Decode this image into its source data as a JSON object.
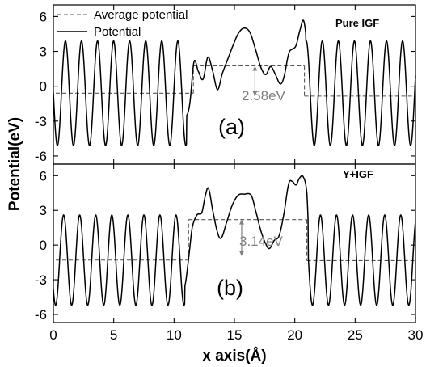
{
  "chart_data": {
    "type": "line",
    "xlabel": "x axis(Å)",
    "ylabel": "Potential(eV)",
    "xlim": [
      0,
      30
    ],
    "x_ticks": [
      "0",
      "5",
      "10",
      "15",
      "20",
      "25",
      "30"
    ],
    "legend": {
      "placement": "top-left",
      "entries": [
        {
          "label": "Average potential",
          "style": "dashed"
        },
        {
          "label": "Potential",
          "style": "solid"
        }
      ]
    },
    "panels": [
      {
        "tag": "Pure IGF",
        "label": "(a)",
        "ylim": [
          -6.7,
          7.0
        ],
        "y_ticks": [
          "6",
          "3",
          "0",
          "-3",
          "-6"
        ],
        "y_tick_values": [
          6,
          3,
          0,
          -3,
          -6
        ],
        "gap_label": "2.58eV",
        "bulk": {
          "osc_x_max": 11.05,
          "period": 1.33,
          "mean": -0.6,
          "amplitude": 4.5,
          "phase_x": 1.0
        },
        "interface_region": {
          "x_range": [
            11.05,
            20.9
          ]
        },
        "interface_points": [
          [
            11.0,
            -2.6
          ],
          [
            11.3,
            -1.5
          ],
          [
            11.65,
            2.1
          ],
          [
            12.0,
            1.3
          ],
          [
            12.4,
            0.6
          ],
          [
            12.8,
            2.5
          ],
          [
            13.2,
            1.3
          ],
          [
            13.6,
            -0.3
          ],
          [
            14.0,
            1.1
          ],
          [
            14.4,
            2.2
          ],
          [
            14.8,
            3.3
          ],
          [
            15.3,
            4.5
          ],
          [
            15.8,
            5.0
          ],
          [
            16.3,
            4.6
          ],
          [
            16.8,
            3.0
          ],
          [
            17.2,
            1.6
          ],
          [
            17.6,
            1.0
          ],
          [
            18.0,
            1.7
          ],
          [
            18.4,
            1.0
          ],
          [
            18.8,
            0.2
          ],
          [
            19.1,
            0.8
          ],
          [
            19.5,
            2.8
          ],
          [
            19.8,
            3.2
          ],
          [
            20.1,
            3.5
          ],
          [
            20.45,
            4.9
          ],
          [
            20.75,
            5.6
          ],
          [
            21.05,
            3.0
          ],
          [
            21.2,
            -1.2
          ],
          [
            21.3,
            -3.4
          ]
        ],
        "avg_segments": [
          {
            "x": [
              0.2,
              11.6
            ],
            "y": -0.6
          },
          {
            "x": [
              11.6,
              20.8
            ],
            "y": 1.75
          },
          {
            "x": [
              20.8,
              30
            ],
            "y": -0.85
          }
        ],
        "gap_arrow": {
          "x": 16.7,
          "y_from": 1.75,
          "y_to": -0.83
        }
      },
      {
        "tag": "Y+IGF",
        "label": "(b)",
        "ylim": [
          -6.7,
          7.0
        ],
        "y_ticks": [
          "6",
          "3",
          "0",
          "-3",
          "-6"
        ],
        "y_tick_values": [
          6,
          3,
          0,
          -3,
          -6
        ],
        "gap_label": "3.14eV",
        "bulk": {
          "osc_x_max": 10.9,
          "period": 1.33,
          "mean": -1.3,
          "amplitude": 3.9,
          "phase_x": 0.85
        },
        "interface_region": {
          "x_range": [
            10.9,
            21.1
          ]
        },
        "interface_points": [
          [
            10.9,
            -3.5
          ],
          [
            11.2,
            -1.2
          ],
          [
            11.5,
            1.5
          ],
          [
            11.9,
            2.6
          ],
          [
            12.3,
            2.8
          ],
          [
            12.6,
            4.3
          ],
          [
            12.85,
            4.9
          ],
          [
            13.2,
            3.0
          ],
          [
            13.6,
            1.1
          ],
          [
            13.9,
            0.6
          ],
          [
            14.3,
            1.8
          ],
          [
            14.8,
            3.4
          ],
          [
            15.3,
            4.3
          ],
          [
            15.8,
            4.4
          ],
          [
            16.4,
            4.3
          ],
          [
            16.8,
            2.8
          ],
          [
            17.2,
            1.2
          ],
          [
            17.6,
            0.1
          ],
          [
            17.9,
            -0.3
          ],
          [
            18.3,
            0.4
          ],
          [
            18.7,
            0.8
          ],
          [
            19.1,
            2.7
          ],
          [
            19.5,
            5.3
          ],
          [
            19.8,
            5.5
          ],
          [
            20.1,
            5.2
          ],
          [
            20.4,
            5.8
          ],
          [
            20.7,
            5.9
          ],
          [
            21.0,
            4.5
          ],
          [
            21.2,
            -0.4
          ],
          [
            21.4,
            -3.5
          ]
        ],
        "avg_segments": [
          {
            "x": [
              0.2,
              11.2
            ],
            "y": -1.3
          },
          {
            "x": [
              11.2,
              21.0
            ],
            "y": 2.2
          },
          {
            "x": [
              21.0,
              30
            ],
            "y": -1.35
          }
        ],
        "gap_arrow": {
          "x": 15.6,
          "y_from": 2.2,
          "y_to": -0.94
        }
      }
    ]
  }
}
